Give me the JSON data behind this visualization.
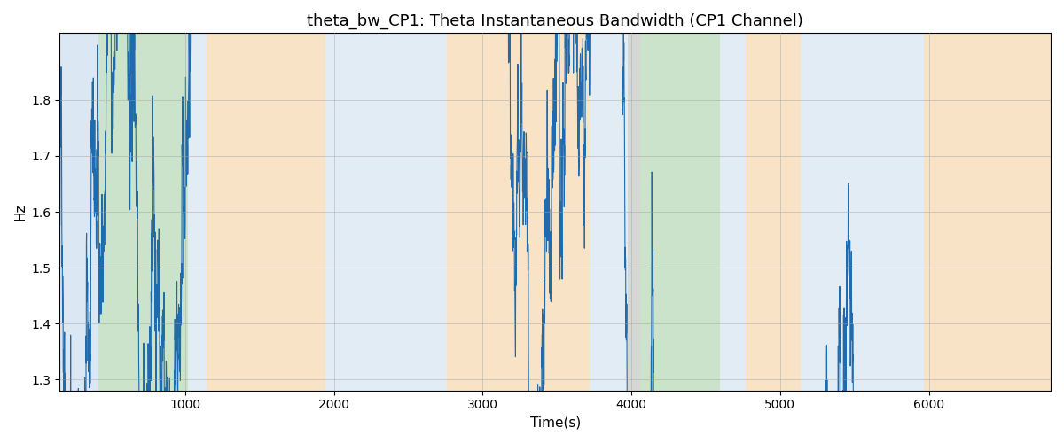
{
  "title": "theta_bw_CP1: Theta Instantaneous Bandwidth (CP1 Channel)",
  "xlabel": "Time(s)",
  "ylabel": "Hz",
  "xlim": [
    155,
    6820
  ],
  "ylim": [
    1.28,
    1.92
  ],
  "yticks": [
    1.3,
    1.4,
    1.5,
    1.6,
    1.7,
    1.8
  ],
  "xticks": [
    1000,
    2000,
    3000,
    4000,
    5000,
    6000
  ],
  "bg_bands": [
    {
      "xmin": 155,
      "xmax": 415,
      "color": "#B8D0E8",
      "alpha": 0.5
    },
    {
      "xmin": 415,
      "xmax": 1015,
      "color": "#98C898",
      "alpha": 0.5
    },
    {
      "xmin": 1015,
      "xmax": 1145,
      "color": "#B8D0E8",
      "alpha": 0.4
    },
    {
      "xmin": 1145,
      "xmax": 1940,
      "color": "#F5C890",
      "alpha": 0.5
    },
    {
      "xmin": 1940,
      "xmax": 2680,
      "color": "#B8D0E8",
      "alpha": 0.4
    },
    {
      "xmin": 2680,
      "xmax": 2760,
      "color": "#B8D0E8",
      "alpha": 0.4
    },
    {
      "xmin": 2760,
      "xmax": 3720,
      "color": "#F5C890",
      "alpha": 0.5
    },
    {
      "xmin": 3720,
      "xmax": 3975,
      "color": "#B8D0E8",
      "alpha": 0.4
    },
    {
      "xmin": 3975,
      "xmax": 4060,
      "color": "#A0A8A0",
      "alpha": 0.45
    },
    {
      "xmin": 4060,
      "xmax": 4595,
      "color": "#98C898",
      "alpha": 0.5
    },
    {
      "xmin": 4595,
      "xmax": 4770,
      "color": "#B8D0E8",
      "alpha": 0.4
    },
    {
      "xmin": 4770,
      "xmax": 5140,
      "color": "#F5C890",
      "alpha": 0.5
    },
    {
      "xmin": 5140,
      "xmax": 5970,
      "color": "#B8D0E8",
      "alpha": 0.4
    },
    {
      "xmin": 5970,
      "xmax": 6820,
      "color": "#F5C890",
      "alpha": 0.5
    }
  ],
  "line_color": "#1F6BAE",
  "line_width": 0.8,
  "grid_color": "#A0A0A0",
  "grid_alpha": 0.5,
  "grid_linewidth": 0.6,
  "title_fontsize": 13,
  "axis_label_fontsize": 11,
  "tick_fontsize": 10,
  "seed": 42,
  "n_points": 6665,
  "x_start": 155,
  "x_end": 6820,
  "mean": 1.615,
  "slow_std": 0.055,
  "fast_std": 0.025,
  "slow_ar": 0.9985,
  "fast_ar": 0.55,
  "figsize": [
    12,
    5
  ],
  "dpi": 100
}
